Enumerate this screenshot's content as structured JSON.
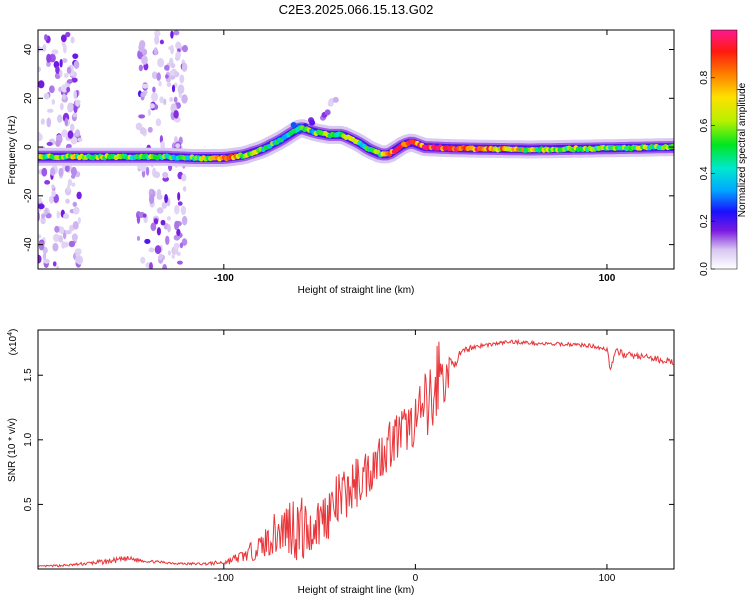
{
  "chart_data": [
    {
      "type": "heatmap",
      "title": "C2E3.2025.066.15.13.G02",
      "xlabel": "Height of straight line (km)",
      "ylabel": "Frequency (Hz)",
      "xlim": [
        -197,
        135
      ],
      "ylim": [
        -50,
        48
      ],
      "x_ticks": [
        -100,
        100
      ],
      "y_ticks": [
        -40,
        -20,
        0,
        20,
        40
      ],
      "colorbar": {
        "label": "Normalized spectral amplitude",
        "range": [
          0,
          1
        ],
        "ticks": [
          0.0,
          0.2,
          0.4,
          0.6,
          0.8
        ]
      },
      "ridge": {
        "x": [
          -197,
          -160,
          -130,
          -115,
          -100,
          -90,
          -80,
          -70,
          -60,
          -52,
          -45,
          -38,
          -30,
          -24,
          -18,
          -14,
          -10,
          -6,
          -2,
          5,
          20,
          60,
          100,
          135
        ],
        "hz": [
          -4,
          -4,
          -4,
          -4.5,
          -4.5,
          -3.5,
          -1,
          3,
          8,
          6,
          5,
          5,
          2,
          -1,
          -3,
          -3,
          -1,
          1,
          2,
          0,
          -0.5,
          -1,
          -0.5,
          0
        ],
        "amplitude": [
          0.55,
          0.6,
          0.5,
          0.45,
          0.9,
          0.6,
          0.5,
          0.45,
          0.4,
          0.5,
          0.5,
          0.55,
          0.5,
          0.5,
          0.6,
          0.8,
          0.8,
          0.85,
          0.85,
          0.9,
          0.95,
          0.6,
          0.55,
          0.55
        ]
      },
      "secondary_branch": {
        "x": [
          -70,
          -62,
          -55,
          -48,
          -42
        ],
        "hz": [
          3,
          8,
          10,
          13,
          18
        ],
        "amplitude": [
          0.35,
          0.3,
          0.25,
          0.2,
          0.15
        ]
      },
      "noise_bands": [
        {
          "from": -197,
          "to": -175
        },
        {
          "from": -145,
          "to": -120
        }
      ]
    },
    {
      "type": "line",
      "xlabel": "Height of straight line (km)",
      "ylabel": "SNR (10 * v/v)",
      "multiplier_label": "(x10",
      "multiplier_exp": "4",
      "xlim": [
        -197,
        135
      ],
      "ylim": [
        0,
        1.85
      ],
      "x_ticks": [
        -100,
        0,
        100
      ],
      "y_ticks": [
        0.5,
        1.0,
        1.5
      ],
      "y_tick_labels": [
        "0.5",
        "1.0",
        "1.5"
      ],
      "color": "#e8363a",
      "x": [
        -197,
        -180,
        -160,
        -150,
        -140,
        -130,
        -120,
        -110,
        -100,
        -90,
        -80,
        -75,
        -70,
        -65,
        -60,
        -55,
        -50,
        -45,
        -40,
        -35,
        -30,
        -25,
        -20,
        -15,
        -10,
        -5,
        0,
        5,
        10,
        12,
        15,
        20,
        25,
        30,
        40,
        50,
        60,
        70,
        80,
        90,
        95,
        100,
        102,
        105,
        110,
        120,
        135
      ],
      "y": [
        0.02,
        0.03,
        0.06,
        0.08,
        0.06,
        0.05,
        0.04,
        0.04,
        0.05,
        0.1,
        0.18,
        0.25,
        0.3,
        0.35,
        0.3,
        0.28,
        0.38,
        0.45,
        0.52,
        0.6,
        0.68,
        0.75,
        0.85,
        0.95,
        1.02,
        1.08,
        1.15,
        1.22,
        1.3,
        1.55,
        1.45,
        1.6,
        1.68,
        1.72,
        1.74,
        1.76,
        1.75,
        1.74,
        1.74,
        1.73,
        1.72,
        1.7,
        1.55,
        1.68,
        1.66,
        1.64,
        1.6
      ],
      "noise": [
        0.005,
        0.01,
        0.02,
        0.02,
        0.01,
        0.01,
        0.01,
        0.01,
        0.02,
        0.05,
        0.1,
        0.15,
        0.2,
        0.25,
        0.3,
        0.18,
        0.2,
        0.22,
        0.22,
        0.2,
        0.2,
        0.2,
        0.18,
        0.2,
        0.2,
        0.18,
        0.2,
        0.3,
        0.4,
        0.3,
        0.2,
        0.05,
        0.03,
        0.02,
        0.015,
        0.015,
        0.015,
        0.015,
        0.015,
        0.015,
        0.015,
        0.02,
        0.05,
        0.03,
        0.025,
        0.025,
        0.025
      ]
    }
  ]
}
